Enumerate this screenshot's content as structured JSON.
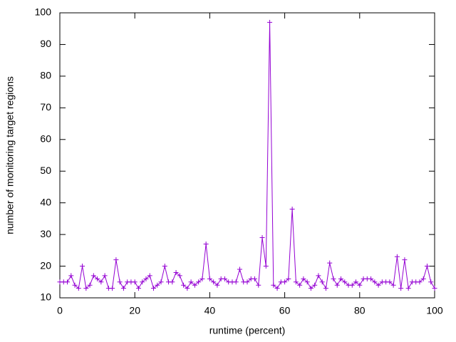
{
  "chart_data": {
    "type": "line",
    "xlabel": "runtime (percent)",
    "ylabel": "number of monitoring target regions",
    "xlim": [
      0,
      100
    ],
    "ylim": [
      10,
      100
    ],
    "xticks": [
      0,
      20,
      40,
      60,
      80,
      100
    ],
    "yticks": [
      10,
      20,
      30,
      40,
      50,
      60,
      70,
      80,
      90,
      100
    ],
    "grid": false,
    "series": [
      {
        "color": "#9400d3",
        "marker": "+",
        "x": [
          0,
          1,
          2,
          3,
          4,
          5,
          6,
          7,
          8,
          9,
          10,
          11,
          12,
          13,
          14,
          15,
          16,
          17,
          18,
          19,
          20,
          21,
          22,
          23,
          24,
          25,
          26,
          27,
          28,
          29,
          30,
          31,
          32,
          33,
          34,
          35,
          36,
          37,
          38,
          39,
          40,
          41,
          42,
          43,
          44,
          45,
          46,
          47,
          48,
          49,
          50,
          51,
          52,
          53,
          54,
          55,
          56,
          57,
          58,
          59,
          60,
          61,
          62,
          63,
          64,
          65,
          66,
          67,
          68,
          69,
          70,
          71,
          72,
          73,
          74,
          75,
          76,
          77,
          78,
          79,
          80,
          81,
          82,
          83,
          84,
          85,
          86,
          87,
          88,
          89,
          90,
          91,
          92,
          93,
          94,
          95,
          96,
          97,
          98,
          99,
          100
        ],
        "values": [
          15,
          15,
          15,
          17,
          14,
          13,
          20,
          13,
          14,
          17,
          16,
          15,
          17,
          13,
          13,
          22,
          15,
          13,
          15,
          15,
          15,
          13,
          15,
          16,
          17,
          13,
          14,
          15,
          20,
          15,
          15,
          18,
          17,
          14,
          13,
          15,
          14,
          15,
          16,
          27,
          16,
          15,
          14,
          16,
          16,
          15,
          15,
          15,
          19,
          15,
          15,
          16,
          16,
          14,
          29,
          20,
          97,
          14,
          13,
          15,
          15,
          16,
          38,
          15,
          14,
          16,
          15,
          13,
          14,
          17,
          15,
          13,
          21,
          16,
          14,
          16,
          15,
          14,
          14,
          15,
          14,
          16,
          16,
          16,
          15,
          14,
          15,
          15,
          15,
          14,
          23,
          13,
          22,
          13,
          15,
          15,
          15,
          16,
          20,
          15,
          13
        ]
      }
    ]
  }
}
